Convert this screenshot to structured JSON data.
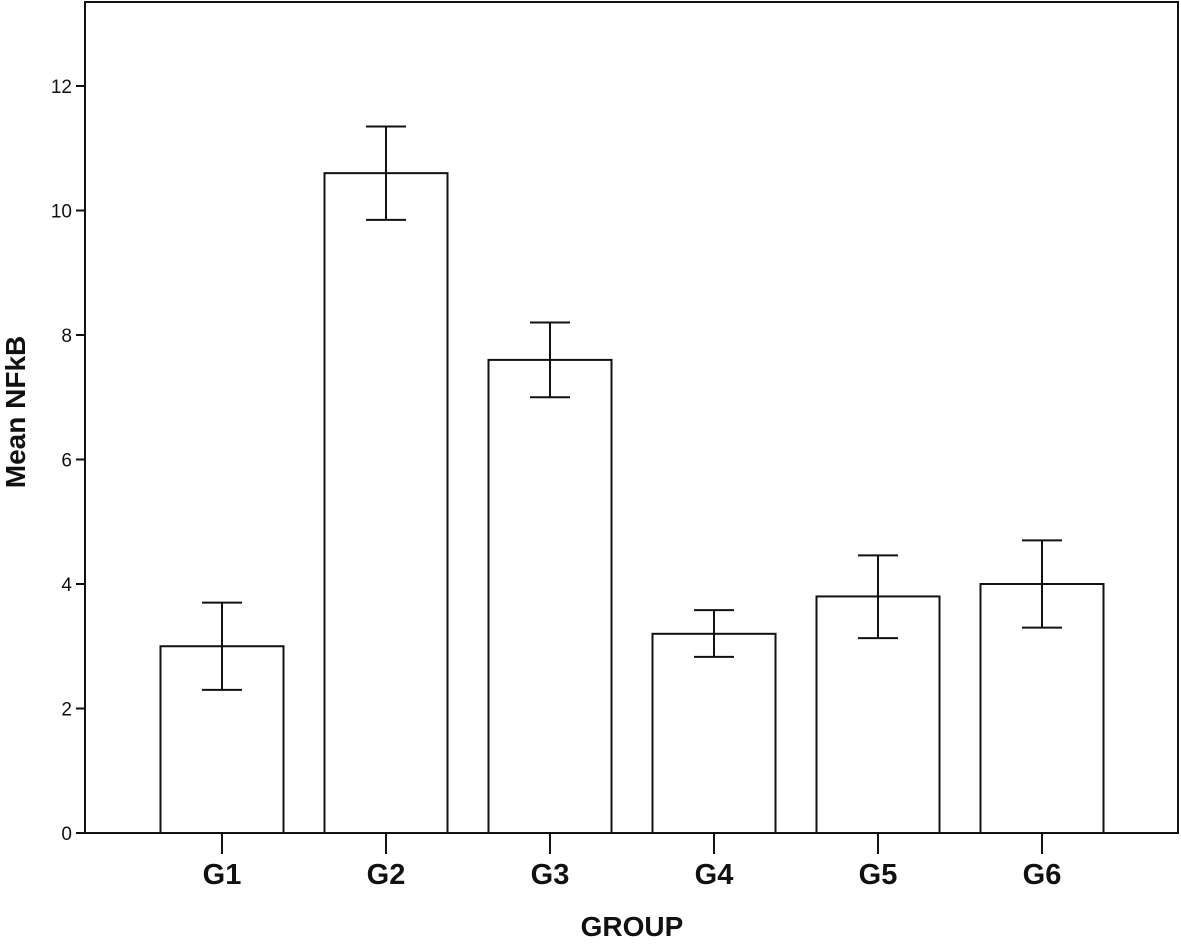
{
  "chart_data": {
    "type": "bar",
    "title": "",
    "xlabel": "GROUP",
    "ylabel": "Mean NFkB",
    "categories": [
      "G1",
      "G2",
      "G3",
      "G4",
      "G5",
      "G6"
    ],
    "values": [
      3.0,
      10.6,
      7.6,
      3.2,
      3.8,
      4.0
    ],
    "error_bars": [
      {
        "low": 2.3,
        "high": 3.7
      },
      {
        "low": 9.85,
        "high": 11.35
      },
      {
        "low": 7.0,
        "high": 8.2
      },
      {
        "low": 2.83,
        "high": 3.58
      },
      {
        "low": 3.13,
        "high": 4.46
      },
      {
        "low": 3.3,
        "high": 4.7
      }
    ],
    "ylim": [
      0,
      13.4
    ],
    "yticks": [
      0,
      2,
      4,
      6,
      8,
      10,
      12
    ],
    "ytick_labels": [
      "0",
      "2",
      "4",
      "6",
      "8",
      "10",
      "12"
    ],
    "grid": false,
    "legend": "none",
    "colors": {
      "bar_fill": "#ffffff",
      "stroke": "#111111",
      "background": "#ffffff"
    }
  }
}
